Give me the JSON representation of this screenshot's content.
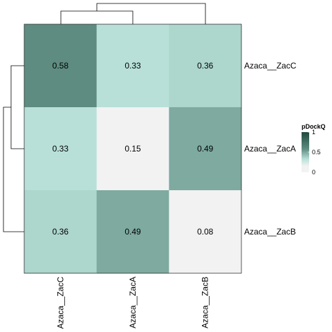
{
  "chart_data": {
    "type": "heatmap",
    "rows": [
      "Azaca__ZacC",
      "Azaca__ZacA",
      "Azaca__ZacB"
    ],
    "columns": [
      "Azaca__ZacC",
      "Azaca__ZacA",
      "Azaca__ZacB"
    ],
    "values": [
      [
        0.58,
        0.33,
        0.36
      ],
      [
        0.33,
        0.15,
        0.49
      ],
      [
        0.36,
        0.49,
        0.08
      ]
    ],
    "value_labels": [
      [
        "0.58",
        "0.33",
        "0.36"
      ],
      [
        "0.33",
        "0.15",
        "0.49"
      ],
      [
        "0.36",
        "0.49",
        "0.08"
      ]
    ],
    "color_scale": {
      "min": 0,
      "max": 1,
      "colors": [
        [
          0,
          "#f2f2f2"
        ],
        [
          0.15,
          "#f2f2f2"
        ],
        [
          0.33,
          "#b8e0d8"
        ],
        [
          0.58,
          "#5e8c80"
        ],
        [
          1,
          "#1f4a3e"
        ]
      ]
    },
    "legend": {
      "title": "pDockQ",
      "ticks": [
        "1",
        "0.5",
        "0"
      ],
      "tick_values": [
        1,
        0.5,
        0
      ],
      "placement": "right"
    },
    "row_dendrogram": "left",
    "column_dendrogram": "top"
  }
}
